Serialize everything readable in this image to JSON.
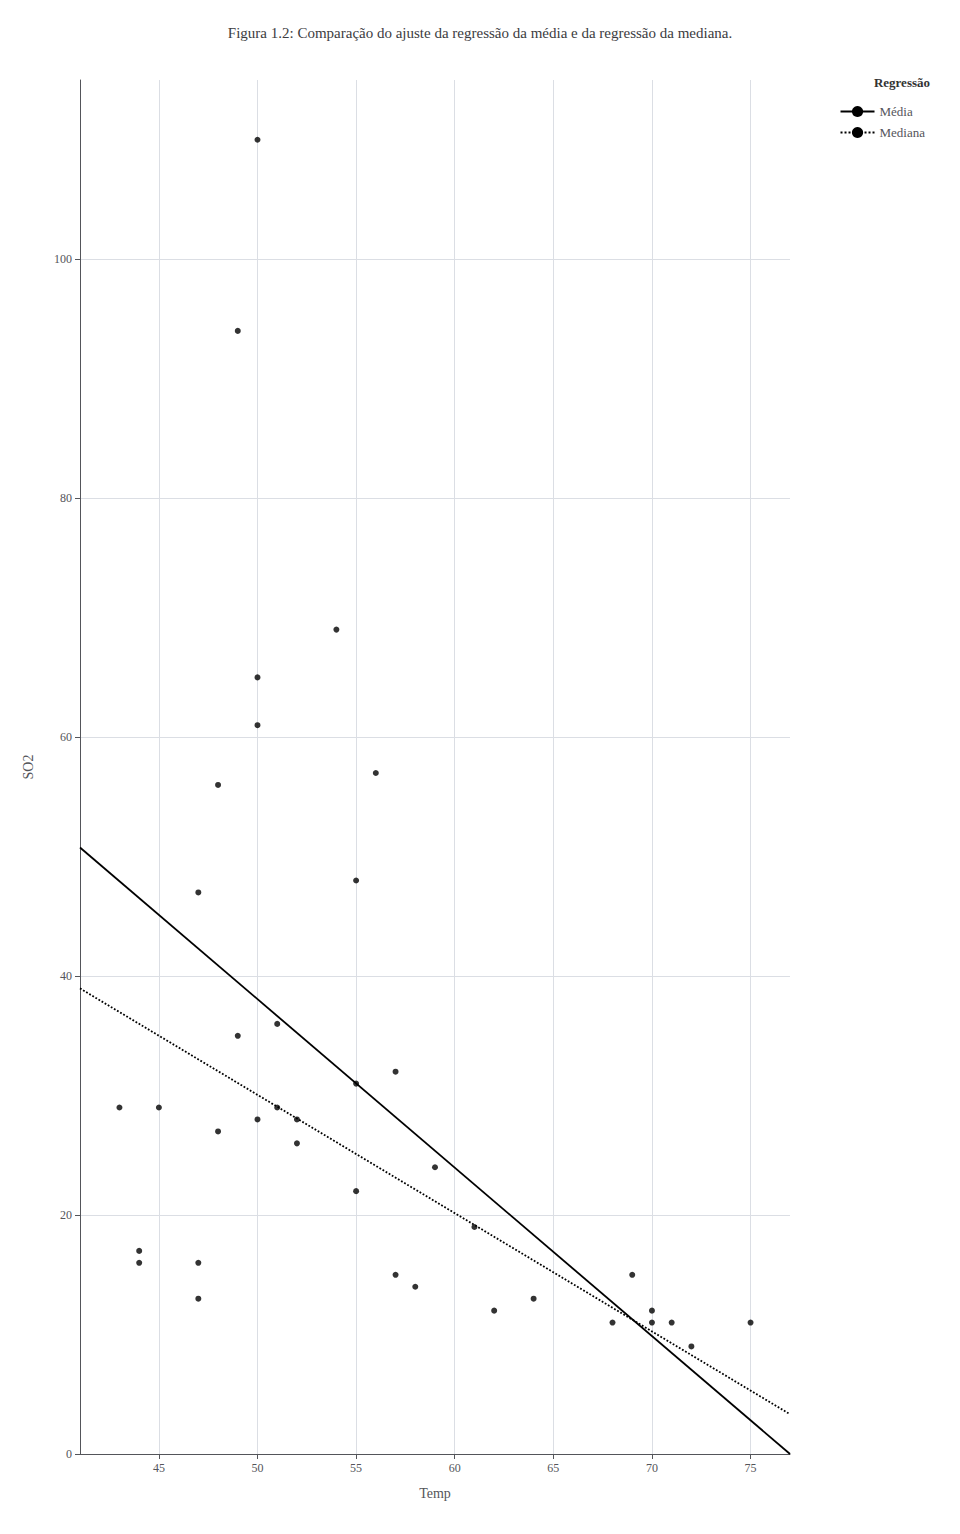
{
  "chart_data": {
    "type": "scatter",
    "title": "Figura 1.2: Comparação do ajuste da regressão da média e da regressão da mediana.",
    "xlabel": "Temp",
    "ylabel": "SO2",
    "xlim": [
      41,
      77
    ],
    "ylim": [
      0,
      115
    ],
    "xticks": [
      45,
      50,
      55,
      60,
      65,
      70,
      75
    ],
    "yticks": [
      0,
      20,
      40,
      60,
      80,
      100
    ],
    "grid": true,
    "legend": "right",
    "legend_title": "Regressão",
    "series": [
      {
        "type": "scatter",
        "color": "#000000",
        "marker": "circle",
        "x": [
          43,
          44,
          44,
          45,
          47,
          47,
          47,
          48,
          48,
          49,
          49,
          50,
          50,
          50,
          50,
          51,
          51,
          52,
          52,
          54,
          55,
          55,
          55,
          56,
          57,
          57,
          58,
          59,
          61,
          62,
          64,
          68,
          69,
          70,
          70,
          71,
          72,
          75
        ],
        "values": [
          29,
          16,
          17,
          29,
          47,
          16,
          13,
          56,
          27,
          94,
          35,
          110,
          61,
          65,
          28,
          36,
          29,
          28,
          26,
          69,
          48,
          31,
          22,
          57,
          32,
          15,
          14,
          24,
          19,
          12,
          13,
          11,
          15,
          11,
          12,
          11,
          9,
          11
        ]
      },
      {
        "name": "Média",
        "type": "line",
        "color": "#000000",
        "line_style": "solid",
        "x": [
          41,
          77
        ],
        "values": [
          50.76,
          0
        ]
      },
      {
        "name": "Mediana",
        "type": "line",
        "color": "#000000",
        "line_style": "dotted",
        "x": [
          41,
          77
        ],
        "values": [
          38.97,
          3.33
        ]
      }
    ]
  }
}
